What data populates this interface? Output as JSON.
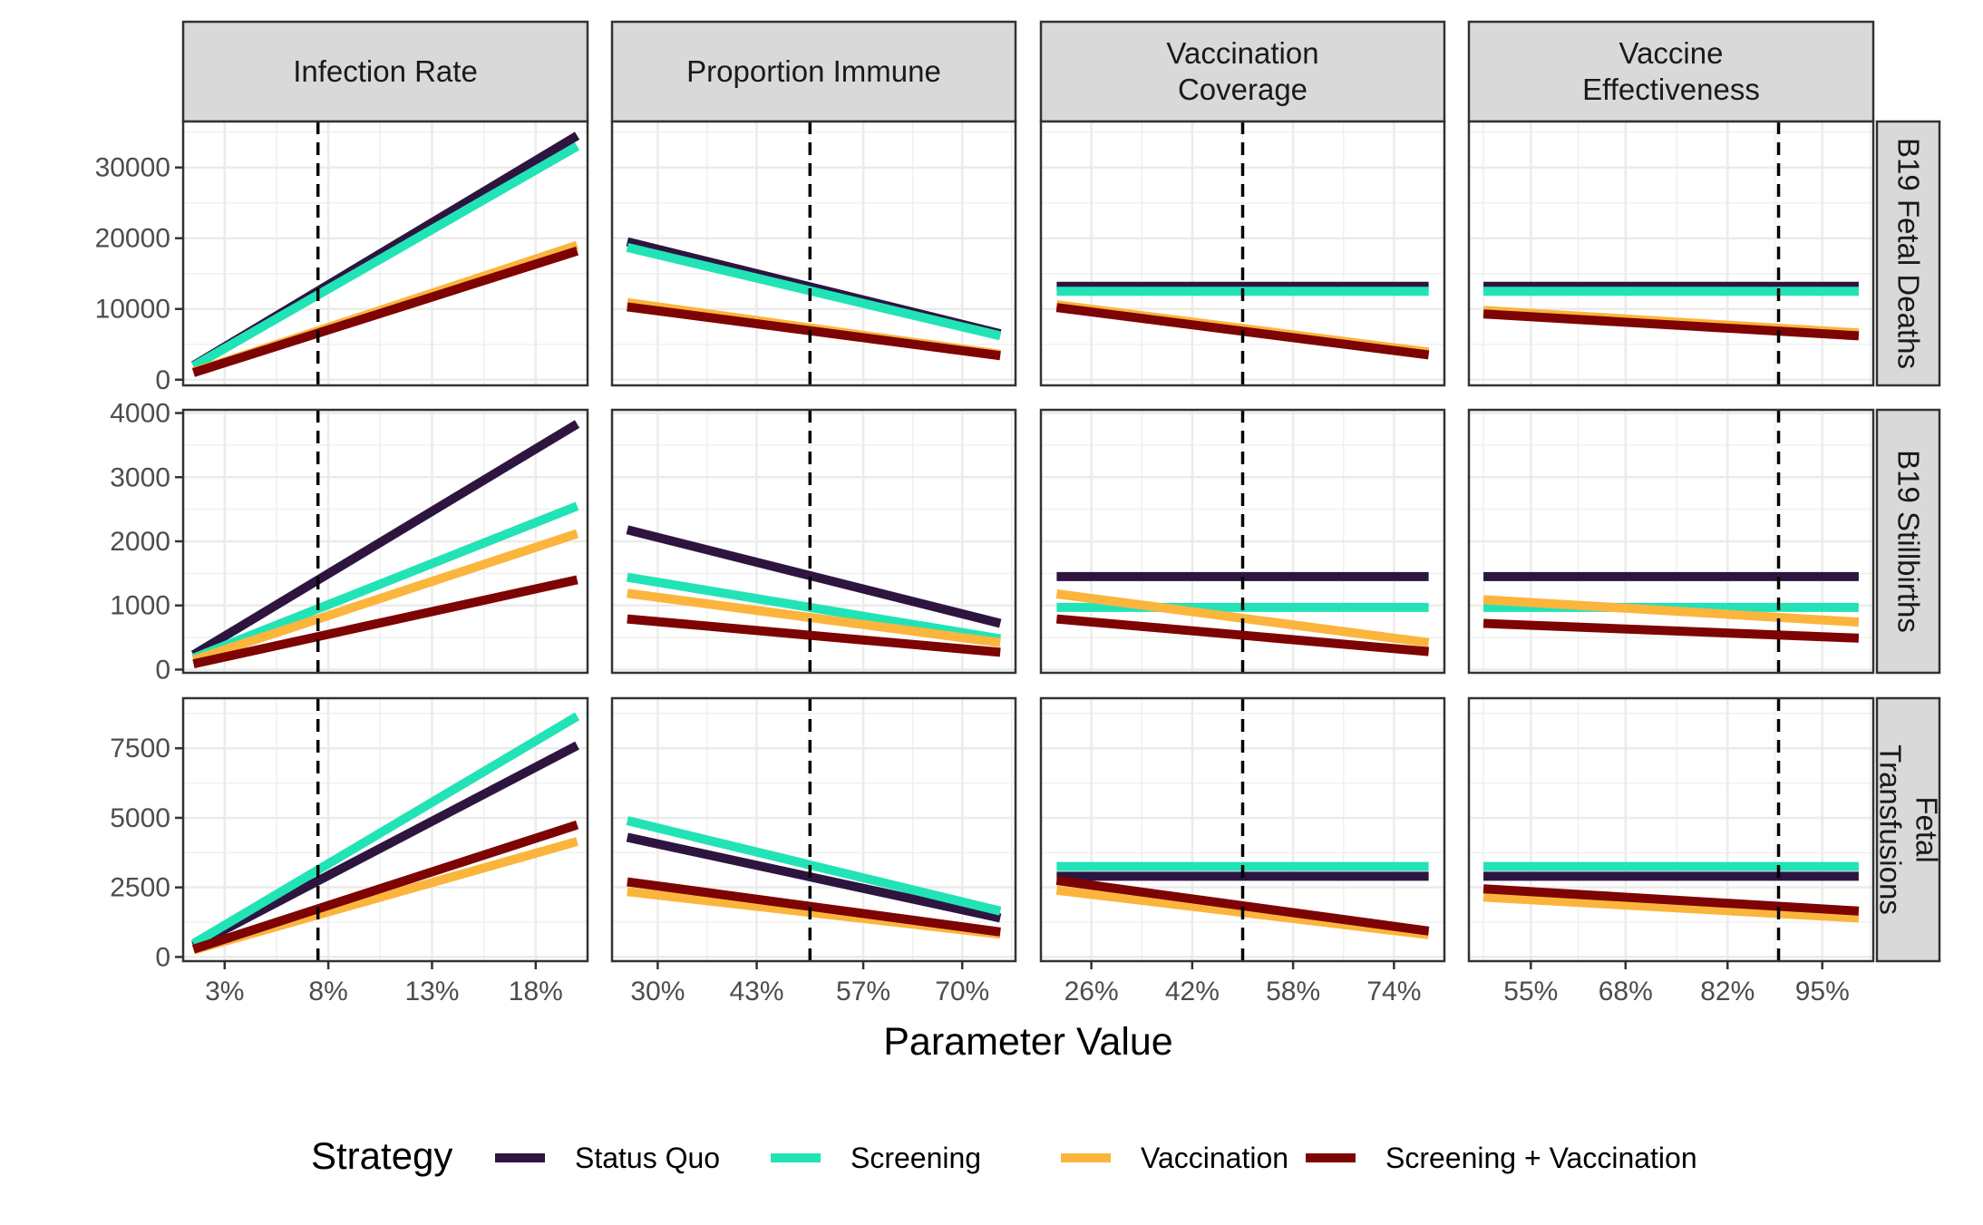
{
  "chart_data": {
    "type": "line",
    "xlabel": "Parameter Value",
    "ylabel": "",
    "grid": true,
    "legend_position": "bottom",
    "legend": {
      "title": "Strategy",
      "entries": [
        "Status Quo",
        "Screening",
        "Vaccination",
        "Screening + Vaccination"
      ]
    },
    "colors": {
      "Status Quo": "#2d1540",
      "Screening": "#22e3b6",
      "Vaccination": "#fbb53c",
      "Screening + Vaccination": "#7e0303"
    },
    "strategies": [
      "Status Quo",
      "Screening",
      "Vaccination",
      "Screening + Vaccination"
    ],
    "columns": [
      {
        "label": [
          "Infection Rate"
        ],
        "xlim": [
          0.01,
          0.205
        ],
        "xticks": [
          0.03,
          0.08,
          0.13,
          0.18
        ],
        "xtick_labels": [
          "3%",
          "8%",
          "13%",
          "18%"
        ],
        "x_range": [
          0.015,
          0.2
        ],
        "base": 0.075
      },
      {
        "label": [
          "Proportion Immune"
        ],
        "xlim": [
          0.24,
          0.77
        ],
        "xticks": [
          0.3,
          0.43,
          0.57,
          0.7
        ],
        "xtick_labels": [
          "30%",
          "43%",
          "57%",
          "70%"
        ],
        "x_range": [
          0.26,
          0.75
        ],
        "base": 0.5
      },
      {
        "label": [
          "Vaccination",
          "Coverage"
        ],
        "xlim": [
          0.18,
          0.82
        ],
        "xticks": [
          0.26,
          0.42,
          0.58,
          0.74
        ],
        "xtick_labels": [
          "26%",
          "42%",
          "58%",
          "74%"
        ],
        "x_range": [
          0.205,
          0.795
        ],
        "base": 0.5
      },
      {
        "label": [
          "Vaccine",
          "Effectiveness"
        ],
        "xlim": [
          0.465,
          1.02
        ],
        "xticks": [
          0.55,
          0.68,
          0.82,
          0.95
        ],
        "xtick_labels": [
          "55%",
          "68%",
          "82%",
          "95%"
        ],
        "x_range": [
          0.485,
          1.0
        ],
        "base": 0.89
      }
    ],
    "rows": [
      {
        "label": [
          "B19 Fetal Deaths"
        ],
        "ylim": [
          -800,
          36500
        ],
        "yticks": [
          0,
          10000,
          20000,
          30000
        ],
        "ytick_labels": [
          "0",
          "10000",
          "20000",
          "30000"
        ],
        "series": [
          [
            {
              "name": "Status Quo",
              "y": [
                2000,
                34500
              ]
            },
            {
              "name": "Screening",
              "y": [
                1900,
                33000
              ]
            },
            {
              "name": "Vaccination",
              "y": [
                1100,
                19000
              ]
            },
            {
              "name": "Screening + Vaccination",
              "y": [
                1000,
                18200
              ]
            }
          ],
          [
            {
              "name": "Status Quo",
              "y": [
                19500,
                6500
              ]
            },
            {
              "name": "Screening",
              "y": [
                18700,
                6200
              ]
            },
            {
              "name": "Vaccination",
              "y": [
                10900,
                3600
              ]
            },
            {
              "name": "Screening + Vaccination",
              "y": [
                10300,
                3400
              ]
            }
          ],
          [
            {
              "name": "Status Quo",
              "y": [
                13200,
                13200
              ]
            },
            {
              "name": "Screening",
              "y": [
                12500,
                12500
              ]
            },
            {
              "name": "Vaccination",
              "y": [
                10600,
                3900
              ]
            },
            {
              "name": "Screening + Vaccination",
              "y": [
                10200,
                3500
              ]
            }
          ],
          [
            {
              "name": "Status Quo",
              "y": [
                13200,
                13200
              ]
            },
            {
              "name": "Screening",
              "y": [
                12500,
                12500
              ]
            },
            {
              "name": "Vaccination",
              "y": [
                9800,
                6600
              ]
            },
            {
              "name": "Screening + Vaccination",
              "y": [
                9300,
                6200
              ]
            }
          ]
        ]
      },
      {
        "label": [
          "B19 Stillbirths"
        ],
        "ylim": [
          -50,
          4050
        ],
        "yticks": [
          0,
          1000,
          2000,
          3000,
          4000
        ],
        "ytick_labels": [
          "0",
          "1000",
          "2000",
          "3000",
          "4000"
        ],
        "series": [
          [
            {
              "name": "Status Quo",
              "y": [
                230,
                3830
              ]
            },
            {
              "name": "Screening",
              "y": [
                180,
                2550
              ]
            },
            {
              "name": "Vaccination",
              "y": [
                150,
                2120
              ]
            },
            {
              "name": "Screening + Vaccination",
              "y": [
                90,
                1400
              ]
            }
          ],
          [
            {
              "name": "Status Quo",
              "y": [
                2180,
                720
              ]
            },
            {
              "name": "Screening",
              "y": [
                1440,
                480
              ]
            },
            {
              "name": "Vaccination",
              "y": [
                1190,
                420
              ]
            },
            {
              "name": "Screening + Vaccination",
              "y": [
                790,
                270
              ]
            }
          ],
          [
            {
              "name": "Status Quo",
              "y": [
                1450,
                1450
              ]
            },
            {
              "name": "Screening",
              "y": [
                970,
                970
              ]
            },
            {
              "name": "Vaccination",
              "y": [
                1180,
                420
              ]
            },
            {
              "name": "Screening + Vaccination",
              "y": [
                790,
                280
              ]
            }
          ],
          [
            {
              "name": "Status Quo",
              "y": [
                1450,
                1450
              ]
            },
            {
              "name": "Screening",
              "y": [
                970,
                970
              ]
            },
            {
              "name": "Vaccination",
              "y": [
                1090,
                740
              ]
            },
            {
              "name": "Screening + Vaccination",
              "y": [
                720,
                490
              ]
            }
          ]
        ]
      },
      {
        "label": [
          "Fetal",
          "Transfusions"
        ],
        "ylim": [
          -150,
          9300
        ],
        "yticks": [
          0,
          2500,
          5000,
          7500
        ],
        "ytick_labels": [
          "0",
          "2500",
          "5000",
          "7500"
        ],
        "series": [
          [
            {
              "name": "Status Quo",
              "y": [
                400,
                7600
              ]
            },
            {
              "name": "Screening",
              "y": [
                480,
                8650
              ]
            },
            {
              "name": "Vaccination",
              "y": [
                250,
                4150
              ]
            },
            {
              "name": "Screening + Vaccination",
              "y": [
                280,
                4750
              ]
            }
          ],
          [
            {
              "name": "Status Quo",
              "y": [
                4300,
                1400
              ]
            },
            {
              "name": "Screening",
              "y": [
                4900,
                1650
              ]
            },
            {
              "name": "Vaccination",
              "y": [
                2350,
                820
              ]
            },
            {
              "name": "Screening + Vaccination",
              "y": [
                2700,
                900
              ]
            }
          ],
          [
            {
              "name": "Status Quo",
              "y": [
                2900,
                2900
              ]
            },
            {
              "name": "Screening",
              "y": [
                3250,
                3250
              ]
            },
            {
              "name": "Vaccination",
              "y": [
                2400,
                800
              ]
            },
            {
              "name": "Screening + Vaccination",
              "y": [
                2750,
                930
              ]
            }
          ],
          [
            {
              "name": "Status Quo",
              "y": [
                2900,
                2900
              ]
            },
            {
              "name": "Screening",
              "y": [
                3250,
                3250
              ]
            },
            {
              "name": "Vaccination",
              "y": [
                2150,
                1400
              ]
            },
            {
              "name": "Screening + Vaccination",
              "y": [
                2450,
                1650
              ]
            }
          ]
        ]
      }
    ]
  }
}
